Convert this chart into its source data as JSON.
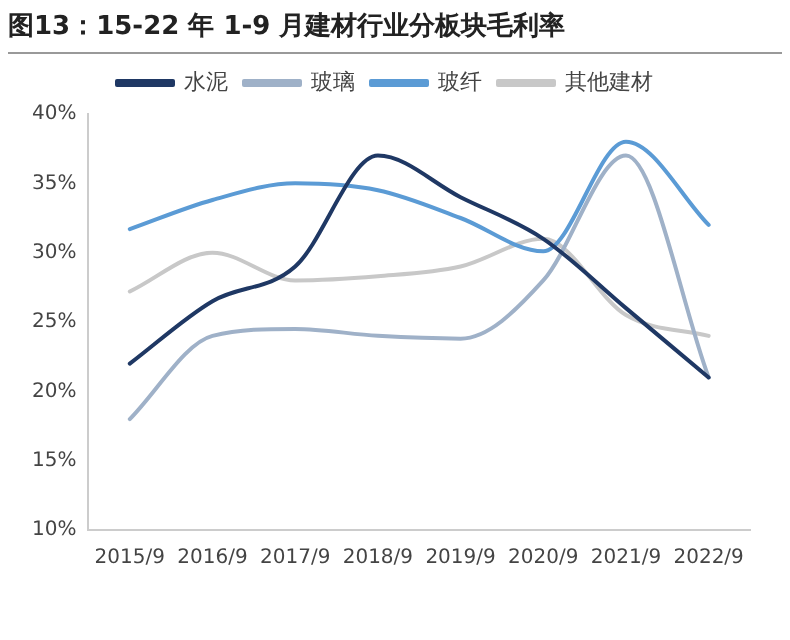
{
  "chart_data": {
    "type": "line",
    "title": "图13：15-22 年 1-9 月建材行业分板块毛利率",
    "categories": [
      "2015/9",
      "2016/9",
      "2017/9",
      "2018/9",
      "2019/9",
      "2020/9",
      "2021/9",
      "2022/9"
    ],
    "series": [
      {
        "name": "水泥",
        "color": "#1f3864",
        "values": [
          22,
          26.5,
          29,
          37,
          34,
          31,
          26,
          21
        ]
      },
      {
        "name": "玻璃",
        "color": "#9fb1c8",
        "values": [
          18,
          24,
          24.5,
          24,
          23.8,
          28,
          37,
          21
        ]
      },
      {
        "name": "玻纤",
        "color": "#5b9bd5",
        "values": [
          31.7,
          33.8,
          35,
          34.5,
          32.5,
          30.1,
          38,
          32
        ]
      },
      {
        "name": "其他建材",
        "color": "#c8c8c8",
        "values": [
          27.2,
          30,
          28,
          28.3,
          29,
          31,
          25.5,
          24
        ]
      }
    ],
    "ylim": [
      10,
      40
    ],
    "yticks": [
      {
        "value": 10,
        "label": "10%"
      },
      {
        "value": 15,
        "label": "15%"
      },
      {
        "value": 20,
        "label": "20%"
      },
      {
        "value": 25,
        "label": "25%"
      },
      {
        "value": 30,
        "label": "30%"
      },
      {
        "value": 35,
        "label": "35%"
      },
      {
        "value": 40,
        "label": "40%"
      }
    ],
    "grid": false,
    "legend": "top",
    "marker": "none",
    "line_style": "solid"
  }
}
